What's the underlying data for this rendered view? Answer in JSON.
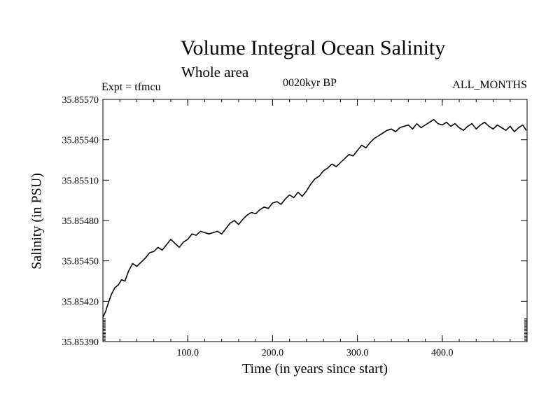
{
  "chart_data": {
    "type": "line",
    "title": "Volume Integral Ocean Salinity",
    "subtitle": "Whole area",
    "annotations": {
      "experiment": "Expt = tfmcu",
      "period": "0020kyr BP",
      "months": "ALL_MONTHS"
    },
    "xlabel": "Time (in years since start)",
    "ylabel": "Salinity (in PSU)",
    "xlim": [
      0,
      500
    ],
    "ylim": [
      35.8539,
      35.8557
    ],
    "x_ticks": [
      100,
      200,
      300,
      400
    ],
    "x_tick_labels": [
      "100.0",
      "200.0",
      "300.0",
      "400.0"
    ],
    "y_ticks": [
      35.8539,
      35.8542,
      35.8545,
      35.8548,
      35.8551,
      35.8554,
      35.8557
    ],
    "y_tick_labels": [
      "35.85390",
      "35.85420",
      "35.85450",
      "35.85480",
      "35.85510",
      "35.85540",
      "35.85570"
    ],
    "grid": false,
    "series": [
      {
        "x": [
          0,
          3,
          6,
          10,
          14,
          18,
          22,
          26,
          30,
          35,
          40,
          45,
          50,
          55,
          60,
          65,
          70,
          75,
          80,
          85,
          90,
          95,
          100,
          105,
          110,
          115,
          120,
          125,
          130,
          135,
          140,
          145,
          150,
          155,
          160,
          165,
          170,
          175,
          180,
          185,
          190,
          195,
          200,
          205,
          210,
          215,
          220,
          225,
          230,
          235,
          240,
          245,
          250,
          255,
          260,
          265,
          270,
          275,
          280,
          285,
          290,
          295,
          300,
          305,
          310,
          315,
          320,
          325,
          330,
          335,
          340,
          345,
          350,
          355,
          360,
          365,
          370,
          375,
          380,
          385,
          390,
          395,
          400,
          405,
          410,
          415,
          420,
          425,
          430,
          435,
          440,
          445,
          450,
          455,
          460,
          465,
          470,
          475,
          480,
          485,
          490,
          495,
          499
        ],
        "values": [
          35.85408,
          35.85412,
          35.85418,
          35.85425,
          35.8543,
          35.85432,
          35.85436,
          35.85435,
          35.85442,
          35.85448,
          35.85446,
          35.85449,
          35.85452,
          35.85456,
          35.85457,
          35.8546,
          35.85458,
          35.85462,
          35.85466,
          35.85463,
          35.8546,
          35.85464,
          35.85466,
          35.8547,
          35.85469,
          35.85472,
          35.85471,
          35.8547,
          35.85471,
          35.85472,
          35.8547,
          35.85474,
          35.85478,
          35.8548,
          35.85477,
          35.85481,
          35.85484,
          35.85486,
          35.85485,
          35.85488,
          35.8549,
          35.85489,
          35.85493,
          35.85494,
          35.85492,
          35.85496,
          35.85499,
          35.85497,
          35.85501,
          35.85498,
          35.85502,
          35.85507,
          35.85511,
          35.85513,
          35.85517,
          35.85519,
          35.85522,
          35.8552,
          35.85523,
          35.85526,
          35.85529,
          35.85528,
          35.85532,
          35.85536,
          35.85534,
          35.85538,
          35.85541,
          35.85543,
          35.85545,
          35.85547,
          35.85548,
          35.85546,
          35.85549,
          35.8555,
          35.85551,
          35.85548,
          35.85552,
          35.85549,
          35.85551,
          35.85553,
          35.85555,
          35.85552,
          35.85551,
          35.85553,
          35.8555,
          35.85552,
          35.85549,
          35.85547,
          35.8555,
          35.85552,
          35.85548,
          35.85551,
          35.85553,
          35.8555,
          35.85548,
          35.85551,
          35.85549,
          35.85547,
          35.8555,
          35.85546,
          35.85549,
          35.85551,
          35.85547
        ]
      }
    ]
  }
}
